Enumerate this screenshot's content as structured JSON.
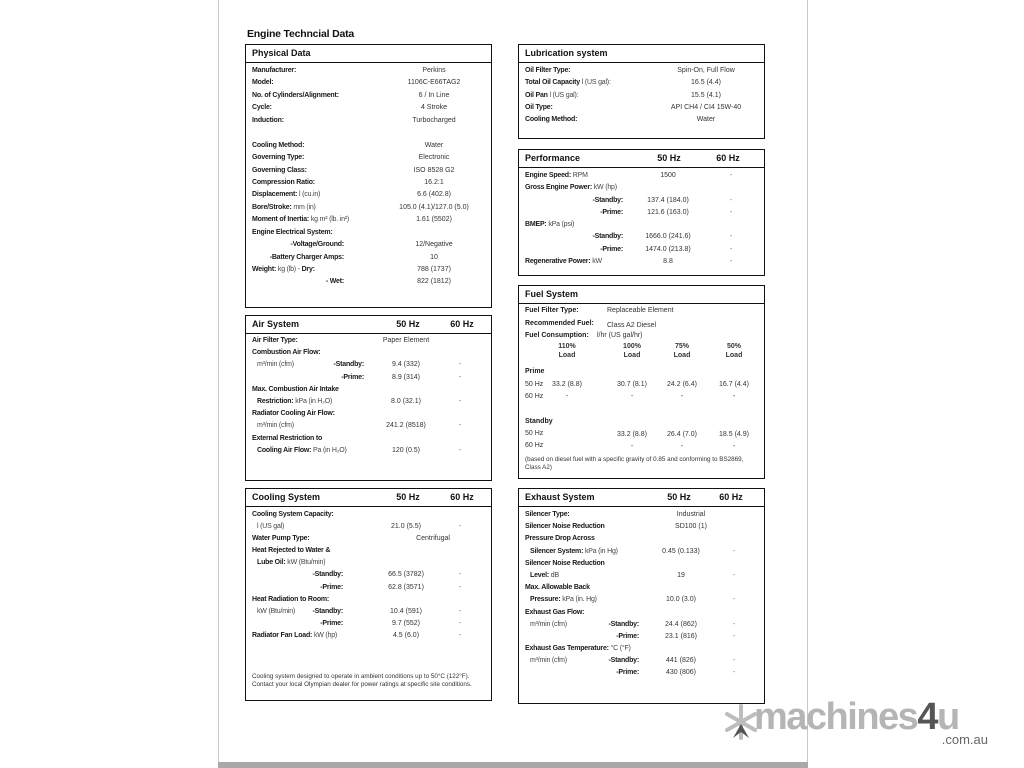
{
  "document": {
    "title": "Engine Techncial Data"
  },
  "physical": {
    "title": "Physical Data",
    "rows": [
      {
        "label": "Manufacturer:",
        "value": "Perkins"
      },
      {
        "label": "Model:",
        "value": "1106C-E66TAG2"
      },
      {
        "label": "No. of Cylinders/Alignment:",
        "value": "6 / In Line"
      },
      {
        "label": "Cycle:",
        "value": "4 Stroke"
      },
      {
        "label": "Induction:",
        "value": "Turbocharged"
      },
      {},
      {
        "label": "Cooling Method:",
        "value": "Water"
      },
      {
        "label": "Governing Type:",
        "value": "Electronic"
      },
      {
        "label": "Governing Class:",
        "value": "ISO 8528 G2"
      },
      {
        "label": "Compression Ratio:",
        "value": "16.2:1"
      },
      {
        "label": "Displacement:",
        "unit": "l (cu.in)",
        "value": "6.6 (402.8)"
      },
      {
        "label": "Bore/Stroke:",
        "unit": "mm (in)",
        "value": "105.0 (4.1)/127.0 (5.0)"
      },
      {
        "label": "Moment of Inertia:",
        "unit": "kg m² (lb. in²)",
        "value": "1.61 (5502)"
      },
      {
        "label": "Engine Electrical System:"
      },
      {
        "sub": "-Voltage/Ground:",
        "value": "12/Negative"
      },
      {
        "sub": "-Battery Charger Amps:",
        "value": "10"
      },
      {
        "label": "Weight:",
        "unit": "kg (lb) -",
        "label2": " Dry:",
        "value": "788 (1737)"
      },
      {
        "sub": "- Wet:",
        "value": "822 (1812)"
      }
    ]
  },
  "lubrication": {
    "title": "Lubrication system",
    "rows": [
      {
        "label": "Oil Filter Type:",
        "value": "Spin-On, Full Flow"
      },
      {
        "label": "Total Oil Capacity",
        "unit": "l (US gal):",
        "value": "16.5 (4.4)"
      },
      {
        "label": "Oil Pan",
        "unit": "l (US gal):",
        "value": "15.5 (4.1)"
      },
      {
        "label": "Oil Type:",
        "value": "API CH4 / CI4 15W-40"
      },
      {
        "label": "Cooling Method:",
        "value": "Water"
      }
    ]
  },
  "performance": {
    "title": "Performance",
    "col_50": "50 Hz",
    "col_60": "60 Hz",
    "rows": [
      {
        "label": "Engine Speed:",
        "unit": "RPM",
        "value": "1500",
        "v60": "-"
      },
      {
        "label": "Gross Engine Power:",
        "unit": "kW (hp)"
      },
      {
        "sub": "-Standby:",
        "value": "137.4 (184.0)",
        "v60": "-"
      },
      {
        "sub": "-Prime:",
        "value": "121.6 (163.0)",
        "v60": "-"
      },
      {
        "label": "BMEP:",
        "unit": "kPa (psi)"
      },
      {
        "sub": "-Standby:",
        "value": "1666.0 (241.6)",
        "v60": "-"
      },
      {
        "sub": "-Prime:",
        "value": "1474.0 (213.8)",
        "v60": "-"
      },
      {
        "label": "Regenerative Power:",
        "unit": "kW",
        "value": "8.8",
        "v60": "-"
      }
    ]
  },
  "fuel": {
    "title": "Fuel System",
    "filter_label": "Fuel Filter Type:",
    "filter_value": "Replaceable Element",
    "fuel_label": "Recommended Fuel:",
    "fuel_value": "Class A2 Diesel",
    "consumption_label": "Fuel Consumption:",
    "consumption_unit": "l/hr (US gal/hr)",
    "columns": [
      "110%\nLoad",
      "100%\nLoad",
      "75%\nLoad",
      "50%\nLoad"
    ],
    "prime_label": "Prime",
    "standby_label": "Standby",
    "hz50": "50 Hz",
    "hz60": "60 Hz",
    "prime_50": [
      "33.2 (8.8)",
      "30.7 (8.1)",
      "24.2 (6.4)",
      "16.7 (4.4)"
    ],
    "prime_60": [
      "-",
      "-",
      "-",
      "-"
    ],
    "standby_50": [
      "",
      "33.2 (8.8)",
      "26.4 (7.0)",
      "18.5 (4.9)"
    ],
    "standby_60": [
      "",
      "-",
      "-",
      "-"
    ],
    "note": "(based on diesel fuel with a specific gravity of 0.85 and conforming to BS2869, Class A2)"
  },
  "air": {
    "title": "Air System",
    "col_50": "50 Hz",
    "col_60": "60 Hz",
    "rows": [
      {
        "label": "Air Filter Type:",
        "value": "Paper Element"
      },
      {
        "label": "Combustion Air Flow:"
      },
      {
        "unit": "m³/min (cfm)",
        "sub": "-Standby:",
        "value": "9.4 (332)",
        "v60": "-"
      },
      {
        "sub": "-Prime:",
        "value": "8.9 (314)",
        "v60": "-"
      },
      {
        "label": "Max. Combustion Air Intake"
      },
      {
        "label": "Restriction:",
        "unit": "kPa (in H₂O)",
        "value": "8.0 (32.1)",
        "v60": "-",
        "indent": true
      },
      {
        "label": "Radiator Cooling  Air Flow:"
      },
      {
        "unit": "m³/min (cfm)",
        "value": "241.2 (8518)",
        "v60": "-"
      },
      {
        "label": "External Restriction to"
      },
      {
        "label": "Cooling Air Flow:",
        "unit": "Pa (in H₂O)",
        "value": "120 (0.5)",
        "v60": "-",
        "indent": true
      }
    ]
  },
  "cooling": {
    "title": "Cooling System",
    "col_50": "50 Hz",
    "col_60": "60 Hz",
    "rows": [
      {
        "label": "Cooling System Capacity:"
      },
      {
        "unit": "l (US gal)",
        "value": "21.0 (5.5)",
        "v60": "-"
      },
      {
        "label": "Water Pump Type:",
        "value": "Centrifugal",
        "span": true
      },
      {
        "label": "Heat Rejected to Water &"
      },
      {
        "label": "Lube Oil:",
        "unit": "kW (Btu/min)",
        "indent": true
      },
      {
        "sub": "-Standby:",
        "value": "66.5 (3782)",
        "v60": "-"
      },
      {
        "sub": "-Prime:",
        "value": "62.8 (3571)",
        "v60": "-"
      },
      {
        "label": "Heat Radiation to Room:"
      },
      {
        "unit": "kW (Btu/min)",
        "sub": "-Standby:",
        "value": "10.4 (591)",
        "v60": "-"
      },
      {
        "sub": "-Prime:",
        "value": "9.7 (552)",
        "v60": "-"
      },
      {
        "label": "Radiator Fan Load:",
        "unit": "kW (hp)",
        "value": "4.5 (6.0)",
        "v60": "-"
      }
    ],
    "note": "Cooling system designed to operate in ambient conditions up to 50°C (122°F). Contact your local Olympian dealer for power ratings at specific site conditions."
  },
  "exhaust": {
    "title": "Exhaust System",
    "col_50": "50 Hz",
    "col_60": "60 Hz",
    "rows": [
      {
        "label": "Silencer Type:",
        "value": "Industrial",
        "span": true
      },
      {
        "label": "Silencer Noise Reduction",
        "value": "SD100 (1)",
        "span": true
      },
      {
        "label": "Pressure Drop Across"
      },
      {
        "label": "Silencer System:",
        "unit": "kPa (in Hg)",
        "value": "0.45 (0.133)",
        "v60": "-",
        "indent": true
      },
      {
        "label": "Silencer Noise Reduction"
      },
      {
        "label": "Level:",
        "unit": "dB",
        "value": "19",
        "v60": "-",
        "indent": true
      },
      {
        "label": "Max. Allowable Back"
      },
      {
        "label": "Pressure:",
        "unit": "kPa (in. Hg)",
        "value": "10.0 (3.0)",
        "v60": "-",
        "indent": true
      },
      {
        "label": "Exhaust Gas Flow:"
      },
      {
        "unit": "m³/min (cfm)",
        "sub": "-Standby:",
        "value": "24.4 (862)",
        "v60": "-"
      },
      {
        "sub": "-Prime:",
        "value": "23.1 (816)",
        "v60": "-"
      },
      {
        "label": "Exhaust Gas Temperature:",
        "unit": "°C (°F)"
      },
      {
        "unit": "m³/min (cfm)",
        "sub": "-Standby:",
        "value": "441 (826)",
        "v60": "-"
      },
      {
        "sub": "-Prime:",
        "value": "430 (806)",
        "v60": "-"
      }
    ]
  },
  "watermark": {
    "brand": "machines4u",
    "domain": ".com.au"
  }
}
